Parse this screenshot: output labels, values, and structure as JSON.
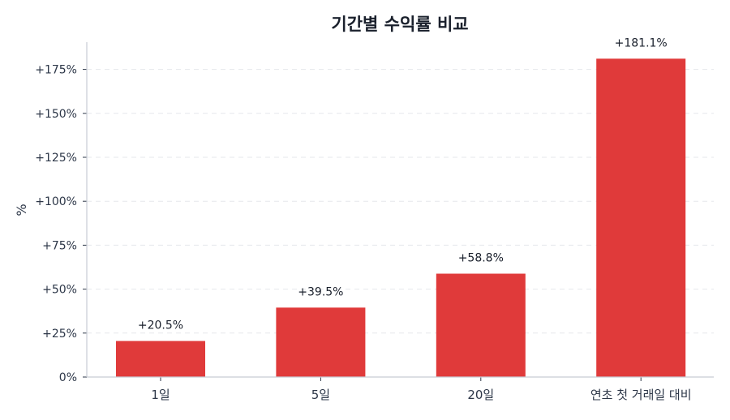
{
  "chart_data": {
    "type": "bar",
    "title": "기간별 수익률 비교",
    "xlabel": "",
    "ylabel": "%",
    "categories": [
      "1일",
      "5일",
      "20일",
      "연초 첫 거래일 대비"
    ],
    "values": [
      20.5,
      39.5,
      58.8,
      181.1
    ],
    "data_labels": [
      "+20.5%",
      "+39.5%",
      "+58.8%",
      "+181.1%"
    ],
    "yticks": [
      0,
      25,
      50,
      75,
      100,
      125,
      150,
      175
    ],
    "ytick_labels": [
      "0%",
      "+25%",
      "+50%",
      "+75%",
      "+100%",
      "+125%",
      "+150%",
      "+175%"
    ],
    "ylim": [
      0,
      190.5
    ],
    "grid": "horizontal dashed",
    "bar_color": "#e03a3a",
    "text_color": "#2d3748",
    "axis_color": "#c8ccd4",
    "grid_color": "#e5e7eb"
  }
}
